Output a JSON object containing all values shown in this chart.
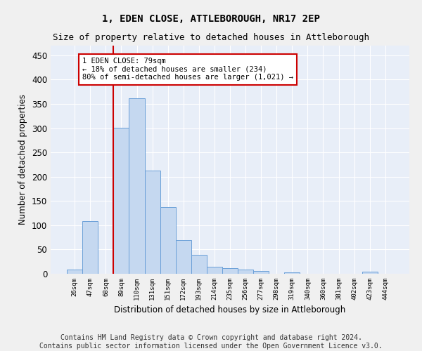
{
  "title": "1, EDEN CLOSE, ATTLEBOROUGH, NR17 2EP",
  "subtitle": "Size of property relative to detached houses in Attleborough",
  "xlabel": "Distribution of detached houses by size in Attleborough",
  "ylabel": "Number of detached properties",
  "bar_color": "#c5d8f0",
  "bar_edge_color": "#6a9fd8",
  "background_color": "#e8eef8",
  "grid_color": "#ffffff",
  "vline_color": "#cc0000",
  "vline_x_index": 3,
  "annotation_text": "1 EDEN CLOSE: 79sqm\n← 18% of detached houses are smaller (234)\n80% of semi-detached houses are larger (1,021) →",
  "annotation_box_color": "#ffffff",
  "annotation_box_edge": "#cc0000",
  "categories": [
    "26sqm",
    "47sqm",
    "68sqm",
    "89sqm",
    "110sqm",
    "131sqm",
    "151sqm",
    "172sqm",
    "193sqm",
    "214sqm",
    "235sqm",
    "256sqm",
    "277sqm",
    "298sqm",
    "319sqm",
    "340sqm",
    "360sqm",
    "381sqm",
    "402sqm",
    "423sqm",
    "444sqm"
  ],
  "values": [
    8,
    108,
    0,
    301,
    362,
    213,
    137,
    70,
    39,
    15,
    12,
    9,
    6,
    0,
    3,
    0,
    0,
    0,
    0,
    4,
    0
  ],
  "ylim": [
    0,
    470
  ],
  "yticks": [
    0,
    50,
    100,
    150,
    200,
    250,
    300,
    350,
    400,
    450
  ],
  "footer": "Contains HM Land Registry data © Crown copyright and database right 2024.\nContains public sector information licensed under the Open Government Licence v3.0.",
  "title_fontsize": 10,
  "subtitle_fontsize": 9,
  "footer_fontsize": 7
}
